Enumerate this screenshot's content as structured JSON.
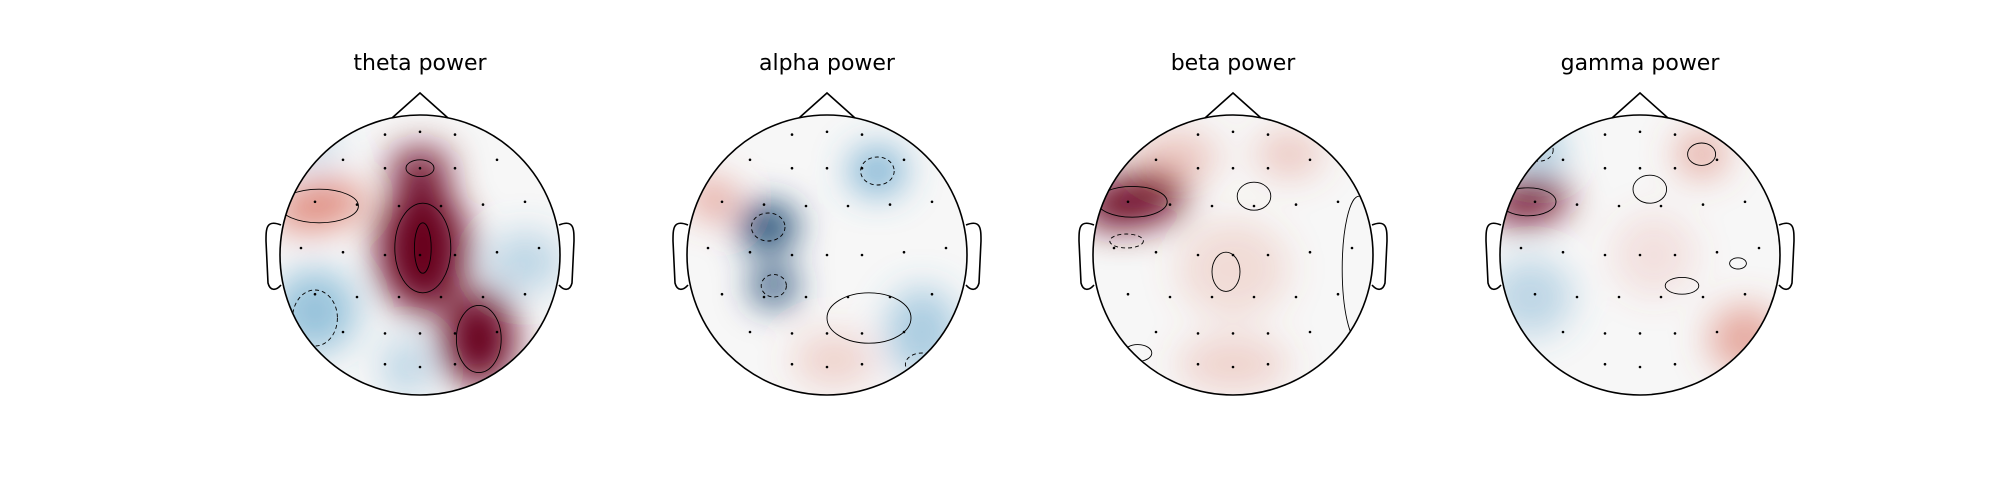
{
  "colors": {
    "strong_positive": "#67001f",
    "positive": "#d6604d",
    "neutral": "#f7f7f7",
    "negative": "#4393c3",
    "strong_negative": "#053061"
  },
  "chart_data": [
    {
      "type": "heatmap",
      "subtype": "EEG topographic map",
      "title": "theta power",
      "colormap": "RdBu_r",
      "regions": [
        {
          "label": "left-frontal-temporal",
          "value": 0.75
        },
        {
          "label": "frontal-center",
          "value": 0.9
        },
        {
          "label": "central",
          "value": 1.0
        },
        {
          "label": "right-parietal-occipital",
          "value": 1.0
        },
        {
          "label": "left-posterior",
          "value": -0.5
        },
        {
          "label": "occipital-center",
          "value": -0.3
        },
        {
          "label": "right-temporal",
          "value": -0.3
        },
        {
          "label": "left-frontal-pole",
          "value": -0.2
        }
      ]
    },
    {
      "type": "heatmap",
      "subtype": "EEG topographic map",
      "title": "alpha power",
      "colormap": "RdBu_r",
      "regions": [
        {
          "label": "left-central",
          "value": -1.0
        },
        {
          "label": "left-parietal",
          "value": -0.9
        },
        {
          "label": "right-frontal",
          "value": -0.7
        },
        {
          "label": "left-temporal",
          "value": 0.6
        },
        {
          "label": "right-posterior",
          "value": -0.4
        },
        {
          "label": "occipital",
          "value": 0.2
        }
      ]
    },
    {
      "type": "heatmap",
      "subtype": "EEG topographic map",
      "title": "beta power",
      "colormap": "RdBu_r",
      "regions": [
        {
          "label": "left-temporal",
          "value": 1.0
        },
        {
          "label": "left-frontal",
          "value": 0.3
        },
        {
          "label": "right-frontal",
          "value": 0.3
        },
        {
          "label": "center",
          "value": 0.15
        },
        {
          "label": "occipital",
          "value": 0.2
        }
      ]
    },
    {
      "type": "heatmap",
      "subtype": "EEG topographic map",
      "title": "gamma power",
      "colormap": "RdBu_r",
      "regions": [
        {
          "label": "left-temporal",
          "value": 1.0
        },
        {
          "label": "left-frontal",
          "value": -0.5
        },
        {
          "label": "right-frontal",
          "value": 0.5
        },
        {
          "label": "right-posterior",
          "value": 0.5
        },
        {
          "label": "left-posterior",
          "value": -0.3
        },
        {
          "label": "center",
          "value": 0.1
        }
      ]
    }
  ]
}
